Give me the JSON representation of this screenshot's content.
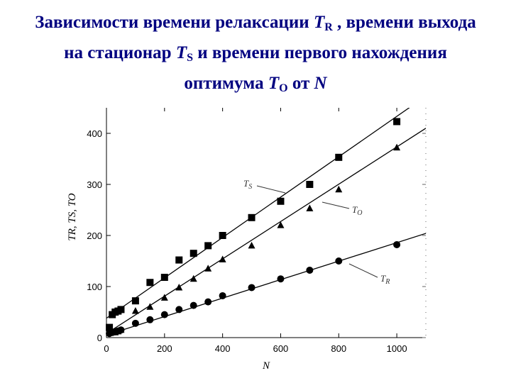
{
  "title": {
    "line1_a": "Зависимости времени релаксации ",
    "line1_sym": "T",
    "line1_sub": "R",
    "line1_b": " , времени выхода",
    "line2_a": "на стационар ",
    "line2_sym": "T",
    "line2_sub": "S",
    "line2_b": " и времени первого нахождения",
    "line3_a": "оптимума ",
    "line3_sym": "T",
    "line3_sub": "O",
    "line3_b": " от ",
    "line3_c": "N"
  },
  "colors": {
    "title": "#000080",
    "marks": "#000000"
  },
  "chart_data": {
    "type": "scatter",
    "xlabel": "N",
    "ylabel": "TR, TS, TO",
    "xlim": [
      0,
      1100
    ],
    "ylim": [
      0,
      450
    ],
    "x_ticks": [
      "0",
      "200",
      "400",
      "600",
      "800",
      "1000"
    ],
    "x_tick_values": [
      0,
      200,
      400,
      600,
      800,
      1000
    ],
    "y_ticks": [
      "0",
      "100",
      "200",
      "300",
      "400"
    ],
    "y_tick_values": [
      0,
      100,
      200,
      300,
      400
    ],
    "grid": false,
    "series": [
      {
        "name": "TS",
        "marker": "square",
        "x": [
          10,
          20,
          30,
          40,
          50,
          100,
          150,
          200,
          250,
          300,
          350,
          400,
          500,
          600,
          700,
          800,
          1000
        ],
        "y": [
          20,
          45,
          50,
          52,
          55,
          72,
          108,
          118,
          152,
          165,
          180,
          200,
          235,
          267,
          300,
          353,
          423
        ],
        "fit": [
          [
            0,
            38
          ],
          [
            1050,
            453
          ]
        ]
      },
      {
        "name": "TO",
        "marker": "triangle",
        "x": [
          10,
          20,
          30,
          40,
          50,
          100,
          150,
          200,
          250,
          300,
          350,
          400,
          500,
          600,
          700,
          800,
          1000
        ],
        "y": [
          10,
          10,
          10,
          12,
          15,
          52,
          60,
          78,
          98,
          115,
          135,
          153,
          180,
          220,
          253,
          290,
          372
        ],
        "fit": [
          [
            0,
            8
          ],
          [
            1100,
            410
          ]
        ]
      },
      {
        "name": "TR",
        "marker": "circle",
        "x": [
          10,
          20,
          30,
          40,
          50,
          100,
          150,
          200,
          250,
          300,
          350,
          400,
          500,
          600,
          700,
          800,
          1000
        ],
        "y": [
          8,
          10,
          12,
          13,
          15,
          28,
          35,
          45,
          55,
          63,
          70,
          82,
          98,
          115,
          132,
          150,
          182
        ],
        "fit": [
          [
            0,
            5
          ],
          [
            1100,
            204
          ]
        ]
      }
    ],
    "annotations": [
      {
        "series": "TS",
        "sym": "T",
        "sub": "S"
      },
      {
        "series": "TO",
        "sym": "T",
        "sub": "O"
      },
      {
        "series": "TR",
        "sym": "T",
        "sub": "R"
      }
    ]
  }
}
